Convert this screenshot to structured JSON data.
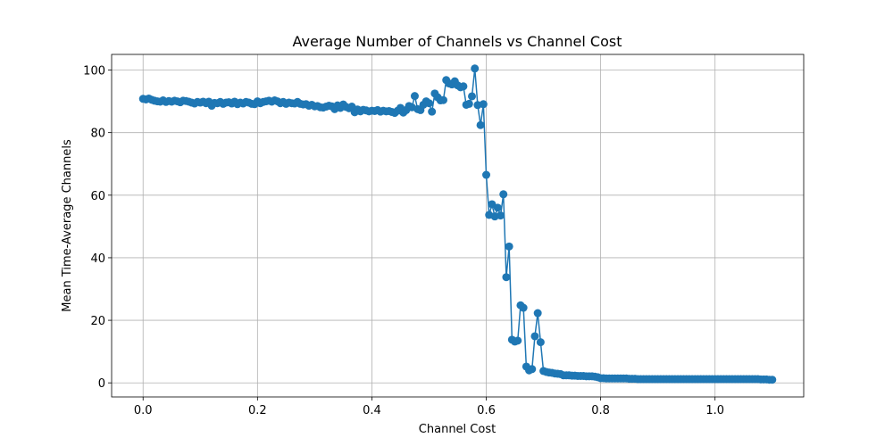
{
  "chart_data": {
    "type": "line",
    "title": "Average Number of Channels vs Channel Cost",
    "xlabel": "Channel Cost",
    "ylabel": "Mean Time-Average Channels",
    "xlim": [
      -0.055,
      1.155
    ],
    "ylim": [
      -4.5,
      105
    ],
    "grid": true,
    "x_ticks": [
      0.0,
      0.2,
      0.4,
      0.6,
      0.8,
      1.0
    ],
    "x_tick_labels": [
      "0.0",
      "0.2",
      "0.4",
      "0.6",
      "0.8",
      "1.0"
    ],
    "y_ticks": [
      0,
      20,
      40,
      60,
      80,
      100
    ],
    "y_tick_labels": [
      "0",
      "20",
      "40",
      "60",
      "80",
      "100"
    ],
    "colors": {
      "series": "#1f77b4",
      "grid": "#b0b0b0"
    },
    "series": [
      {
        "marker": "circle",
        "x": [
          0.0,
          0.005,
          0.01,
          0.015,
          0.02,
          0.025,
          0.03,
          0.035,
          0.04,
          0.045,
          0.05,
          0.055,
          0.06,
          0.065,
          0.07,
          0.075,
          0.08,
          0.085,
          0.09,
          0.095,
          0.1,
          0.105,
          0.11,
          0.115,
          0.12,
          0.125,
          0.13,
          0.135,
          0.14,
          0.145,
          0.15,
          0.155,
          0.16,
          0.165,
          0.17,
          0.175,
          0.18,
          0.185,
          0.19,
          0.195,
          0.2,
          0.205,
          0.21,
          0.215,
          0.22,
          0.225,
          0.23,
          0.235,
          0.24,
          0.245,
          0.25,
          0.255,
          0.26,
          0.265,
          0.27,
          0.275,
          0.28,
          0.285,
          0.29,
          0.295,
          0.3,
          0.305,
          0.31,
          0.315,
          0.32,
          0.325,
          0.33,
          0.335,
          0.34,
          0.345,
          0.35,
          0.355,
          0.36,
          0.365,
          0.37,
          0.375,
          0.38,
          0.385,
          0.39,
          0.395,
          0.4,
          0.405,
          0.41,
          0.415,
          0.42,
          0.425,
          0.43,
          0.435,
          0.44,
          0.445,
          0.45,
          0.455,
          0.46,
          0.465,
          0.47,
          0.475,
          0.48,
          0.485,
          0.49,
          0.495,
          0.5,
          0.505,
          0.51,
          0.515,
          0.52,
          0.525,
          0.53,
          0.535,
          0.54,
          0.545,
          0.55,
          0.555,
          0.56,
          0.565,
          0.57,
          0.575,
          0.58,
          0.585,
          0.59,
          0.595,
          0.6,
          0.605,
          0.61,
          0.615,
          0.62,
          0.625,
          0.63,
          0.635,
          0.64,
          0.645,
          0.65,
          0.655,
          0.66,
          0.665,
          0.67,
          0.675,
          0.68,
          0.685,
          0.69,
          0.695,
          0.7,
          0.705,
          0.71,
          0.715,
          0.72,
          0.725,
          0.73,
          0.735,
          0.74,
          0.745,
          0.75,
          0.755,
          0.76,
          0.765,
          0.77,
          0.775,
          0.78,
          0.785,
          0.79,
          0.795,
          0.8,
          0.805,
          0.81,
          0.815,
          0.82,
          0.825,
          0.83,
          0.835,
          0.84,
          0.845,
          0.85,
          0.855,
          0.86,
          0.865,
          0.87,
          0.875,
          0.88,
          0.885,
          0.89,
          0.895,
          0.9,
          0.905,
          0.91,
          0.915,
          0.92,
          0.925,
          0.93,
          0.935,
          0.94,
          0.945,
          0.95,
          0.955,
          0.96,
          0.965,
          0.97,
          0.975,
          0.98,
          0.985,
          0.99,
          0.995,
          1.0,
          1.005,
          1.01,
          1.015,
          1.02,
          1.025,
          1.03,
          1.035,
          1.04,
          1.045,
          1.05,
          1.055,
          1.06,
          1.065,
          1.07,
          1.075,
          1.08,
          1.085,
          1.09,
          1.095,
          1.1
        ],
        "y": [
          90.8,
          90.6,
          90.9,
          90.5,
          90.2,
          90.0,
          89.9,
          90.3,
          89.8,
          90.1,
          89.9,
          90.2,
          90.0,
          89.7,
          90.2,
          90.1,
          89.9,
          89.6,
          89.3,
          89.8,
          89.6,
          89.9,
          89.4,
          89.9,
          88.6,
          89.5,
          89.4,
          89.8,
          89.2,
          89.6,
          89.7,
          89.3,
          89.9,
          89.1,
          89.6,
          89.3,
          89.8,
          89.6,
          89.2,
          89.1,
          90.0,
          89.4,
          89.8,
          90.0,
          90.2,
          89.9,
          90.3,
          90.0,
          89.4,
          89.8,
          89.2,
          89.6,
          89.4,
          89.3,
          89.8,
          89.2,
          89.0,
          89.1,
          88.6,
          88.9,
          88.4,
          88.5,
          88.1,
          88.0,
          88.3,
          88.6,
          88.4,
          87.5,
          88.7,
          87.9,
          89.0,
          88.2,
          87.8,
          88.3,
          86.5,
          87.4,
          86.8,
          87.3,
          87.1,
          86.8,
          87.0,
          86.9,
          87.2,
          86.7,
          87.0,
          86.8,
          86.9,
          86.6,
          86.3,
          87.0,
          87.9,
          86.4,
          87.2,
          88.5,
          88.1,
          91.7,
          87.5,
          87.2,
          88.9,
          90.0,
          89.4,
          86.7,
          92.5,
          91.3,
          90.3,
          90.4,
          96.8,
          95.7,
          95.4,
          96.4,
          95.1,
          94.5,
          94.8,
          88.9,
          89.2,
          91.6,
          100.5,
          88.8,
          82.4,
          89.1,
          66.5,
          53.7,
          57.1,
          53.2,
          56.0,
          53.5,
          60.3,
          33.8,
          43.6,
          13.8,
          13.2,
          13.5,
          24.8,
          24.0,
          5.2,
          4.0,
          4.4,
          14.9,
          22.3,
          13.0,
          3.8,
          3.5,
          3.3,
          3.2,
          3.0,
          2.9,
          2.8,
          2.4,
          2.4,
          2.4,
          2.3,
          2.3,
          2.2,
          2.2,
          2.2,
          2.1,
          2.1,
          2.1,
          2.0,
          1.8,
          1.5,
          1.5,
          1.4,
          1.4,
          1.4,
          1.4,
          1.4,
          1.4,
          1.4,
          1.4,
          1.3,
          1.3,
          1.3,
          1.2,
          1.2,
          1.2,
          1.2,
          1.2,
          1.2,
          1.2,
          1.2,
          1.2,
          1.2,
          1.2,
          1.2,
          1.2,
          1.2,
          1.2,
          1.2,
          1.2,
          1.2,
          1.2,
          1.2,
          1.2,
          1.2,
          1.2,
          1.2,
          1.2,
          1.2,
          1.2,
          1.2,
          1.2,
          1.2,
          1.2,
          1.2,
          1.2,
          1.2,
          1.2,
          1.2,
          1.2,
          1.2,
          1.2,
          1.2,
          1.2,
          1.2,
          1.2,
          1.1,
          1.1,
          1.1,
          1.0,
          1.0
        ]
      }
    ]
  }
}
